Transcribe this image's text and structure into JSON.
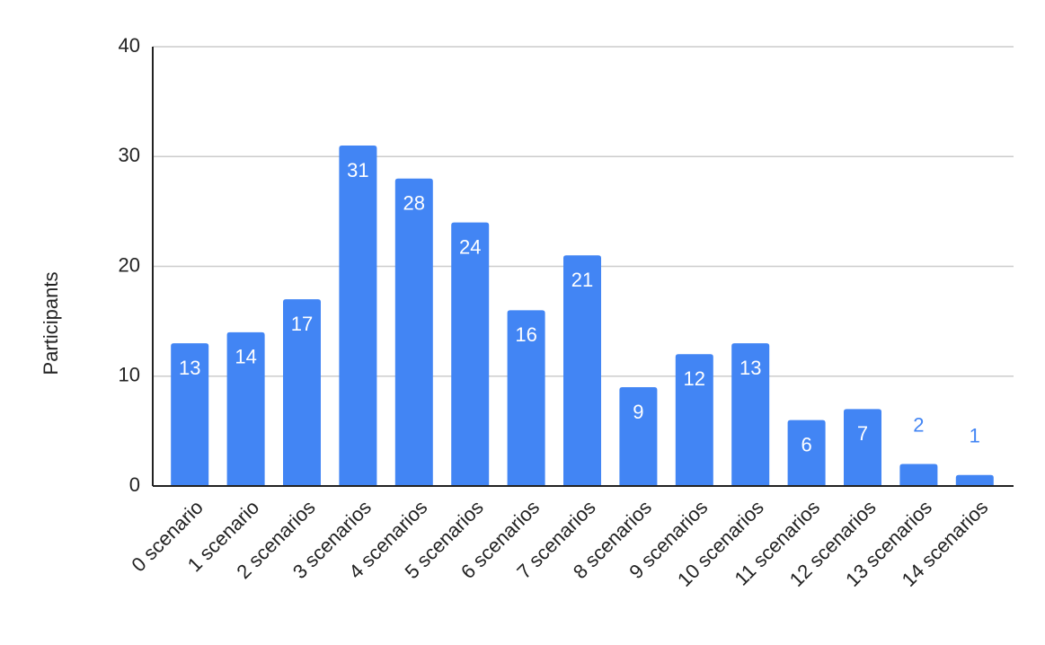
{
  "chart_data": {
    "type": "bar",
    "y_label": "Participants",
    "categories": [
      "0 scenario",
      "1 scenario",
      "2 scenarios",
      "3 scenarios",
      "4 scenarios",
      "5 scenarios",
      "6 scenarios",
      "7 scenarios",
      "8 scenarios",
      "9 scenarios",
      "10 scenarios",
      "11 scenarios",
      "12 scenarios",
      "13 scenarios",
      "14 scenarios"
    ],
    "values": [
      13,
      14,
      17,
      31,
      28,
      24,
      16,
      21,
      9,
      12,
      13,
      6,
      7,
      2,
      1
    ],
    "color": "#4285f4",
    "ylim": [
      0,
      40
    ],
    "yticks": [
      0,
      10,
      20,
      30,
      40
    ],
    "grid": true
  }
}
